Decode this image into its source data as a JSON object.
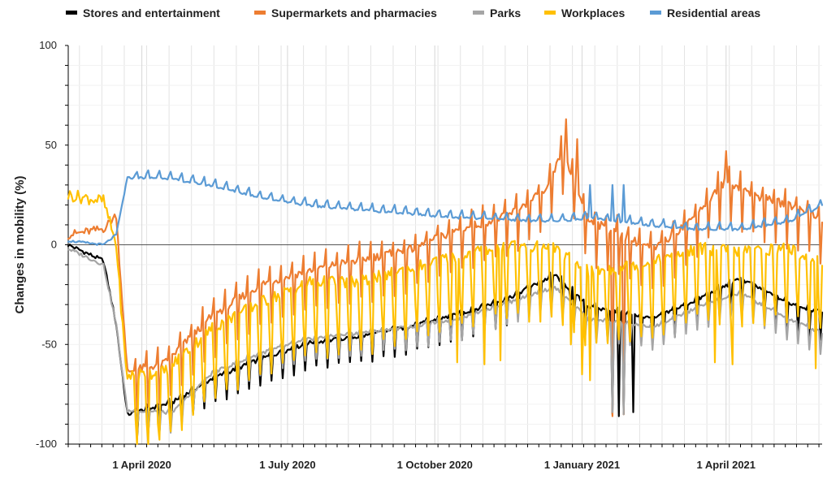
{
  "chart_data": {
    "type": "line",
    "ylabel": "Changes in mobility (%)",
    "xlabel": "",
    "ylim": [
      -100,
      100
    ],
    "yticks": [
      -100,
      -50,
      0,
      50,
      100
    ],
    "x_start": "2020-02-15",
    "x_end": "2021-05-31",
    "x_tick_labels": [
      {
        "date": "2020-04-01",
        "label": "1 April 2020"
      },
      {
        "date": "2020-07-01",
        "label": "1 July 2020"
      },
      {
        "date": "2020-10-01",
        "label": "1 October 2020"
      },
      {
        "date": "2021-01-01",
        "label": "1 January 2021"
      },
      {
        "date": "2021-04-01",
        "label": "1 April 2021"
      }
    ],
    "grid": true,
    "legend_placement": "top",
    "series": [
      {
        "name": "Stores and entertainment",
        "color": "#000000",
        "anchors": [
          [
            "2020-02-15",
            0
          ],
          [
            "2020-03-08",
            -8
          ],
          [
            "2020-03-16",
            -40
          ],
          [
            "2020-03-23",
            -86
          ],
          [
            "2020-04-20",
            -80
          ],
          [
            "2020-05-15",
            -68
          ],
          [
            "2020-06-15",
            -58
          ],
          [
            "2020-07-15",
            -50
          ],
          [
            "2020-08-15",
            -47
          ],
          [
            "2020-09-15",
            -42
          ],
          [
            "2020-10-15",
            -36
          ],
          [
            "2020-11-15",
            -28
          ],
          [
            "2020-12-15",
            -16
          ],
          [
            "2021-01-05",
            -32
          ],
          [
            "2021-02-15",
            -38
          ],
          [
            "2021-03-15",
            -28
          ],
          [
            "2021-04-10",
            -18
          ],
          [
            "2021-05-10",
            -30
          ],
          [
            "2021-05-31",
            -35
          ]
        ],
        "weekly_amp": 6,
        "dips": [
          [
            "2020-12-25",
            -30
          ],
          [
            "2021-01-20",
            -85
          ],
          [
            "2021-01-24",
            -86
          ],
          [
            "2021-01-27",
            -85
          ],
          [
            "2021-02-02",
            -84
          ]
        ]
      },
      {
        "name": "Supermarkets and pharmacies",
        "color": "#ED7D31",
        "anchors": [
          [
            "2020-02-15",
            5
          ],
          [
            "2020-03-08",
            8
          ],
          [
            "2020-03-16",
            15
          ],
          [
            "2020-03-23",
            -66
          ],
          [
            "2020-04-15",
            -62
          ],
          [
            "2020-05-15",
            -38
          ],
          [
            "2020-06-15",
            -22
          ],
          [
            "2020-07-15",
            -15
          ],
          [
            "2020-08-15",
            -10
          ],
          [
            "2020-09-15",
            -5
          ],
          [
            "2020-10-15",
            5
          ],
          [
            "2020-11-15",
            12
          ],
          [
            "2020-12-10",
            25
          ],
          [
            "2020-12-20",
            45
          ],
          [
            "2021-01-05",
            10
          ],
          [
            "2021-02-15",
            -5
          ],
          [
            "2021-03-10",
            10
          ],
          [
            "2021-04-01",
            30
          ],
          [
            "2021-04-20",
            22
          ],
          [
            "2021-05-20",
            15
          ],
          [
            "2021-05-31",
            10
          ]
        ],
        "weekly_amp": 12,
        "dips": [
          [
            "2020-12-22",
            63
          ],
          [
            "2020-12-29",
            53
          ],
          [
            "2021-01-20",
            -86
          ],
          [
            "2021-01-27",
            -85
          ],
          [
            "2021-04-01",
            47
          ]
        ]
      },
      {
        "name": "Parks",
        "color": "#A5A5A5",
        "anchors": [
          [
            "2020-02-15",
            -2
          ],
          [
            "2020-03-08",
            -10
          ],
          [
            "2020-03-16",
            -40
          ],
          [
            "2020-03-23",
            -84
          ],
          [
            "2020-04-20",
            -85
          ],
          [
            "2020-05-15",
            -65
          ],
          [
            "2020-06-15",
            -55
          ],
          [
            "2020-07-15",
            -48
          ],
          [
            "2020-08-15",
            -45
          ],
          [
            "2020-09-15",
            -42
          ],
          [
            "2020-10-15",
            -38
          ],
          [
            "2020-11-15",
            -30
          ],
          [
            "2020-12-15",
            -22
          ],
          [
            "2021-01-05",
            -38
          ],
          [
            "2021-02-15",
            -42
          ],
          [
            "2021-03-15",
            -32
          ],
          [
            "2021-04-10",
            -25
          ],
          [
            "2021-05-10",
            -38
          ],
          [
            "2021-05-31",
            -45
          ]
        ],
        "weekly_amp": 5,
        "dips": [
          [
            "2021-01-20",
            -84
          ],
          [
            "2021-01-27",
            -85
          ]
        ]
      },
      {
        "name": "Workplaces",
        "color": "#FFC000",
        "anchors": [
          [
            "2020-02-15",
            25
          ],
          [
            "2020-03-08",
            22
          ],
          [
            "2020-03-16",
            0
          ],
          [
            "2020-03-23",
            -72
          ],
          [
            "2020-04-15",
            -70
          ],
          [
            "2020-05-15",
            -48
          ],
          [
            "2020-06-15",
            -35
          ],
          [
            "2020-07-15",
            -25
          ],
          [
            "2020-08-15",
            -25
          ],
          [
            "2020-09-15",
            -18
          ],
          [
            "2020-10-15",
            -12
          ],
          [
            "2020-11-15",
            -6
          ],
          [
            "2020-12-15",
            -8
          ],
          [
            "2021-01-05",
            -20
          ],
          [
            "2021-02-15",
            -15
          ],
          [
            "2021-03-15",
            -8
          ],
          [
            "2021-04-10",
            -10
          ],
          [
            "2021-05-10",
            -8
          ],
          [
            "2021-05-31",
            -15
          ]
        ],
        "weekly_amp": 18,
        "dips": [
          [
            "2020-10-15",
            -59
          ],
          [
            "2020-11-01",
            -60
          ],
          [
            "2020-11-11",
            -58
          ],
          [
            "2020-12-25",
            -50
          ],
          [
            "2021-01-01",
            -65
          ],
          [
            "2021-01-06",
            -68
          ],
          [
            "2021-03-25",
            -59
          ],
          [
            "2021-04-05",
            -60
          ],
          [
            "2021-05-27",
            -62
          ]
        ]
      },
      {
        "name": "Residential areas",
        "color": "#5B9BD5",
        "anchors": [
          [
            "2020-02-15",
            2
          ],
          [
            "2020-03-08",
            0
          ],
          [
            "2020-03-16",
            5
          ],
          [
            "2020-03-23",
            34
          ],
          [
            "2020-04-15",
            34
          ],
          [
            "2020-05-15",
            30
          ],
          [
            "2020-06-15",
            24
          ],
          [
            "2020-07-15",
            20
          ],
          [
            "2020-08-15",
            18
          ],
          [
            "2020-09-15",
            16
          ],
          [
            "2020-10-15",
            14
          ],
          [
            "2020-11-15",
            13
          ],
          [
            "2020-12-15",
            12
          ],
          [
            "2021-01-05",
            14
          ],
          [
            "2021-02-15",
            10
          ],
          [
            "2021-03-15",
            8
          ],
          [
            "2021-04-10",
            8
          ],
          [
            "2021-05-10",
            12
          ],
          [
            "2021-05-31",
            20
          ]
        ],
        "weekly_amp": 3,
        "dips": [
          [
            "2021-01-06",
            30
          ],
          [
            "2021-01-20",
            30
          ],
          [
            "2021-01-27",
            30
          ]
        ]
      }
    ]
  }
}
